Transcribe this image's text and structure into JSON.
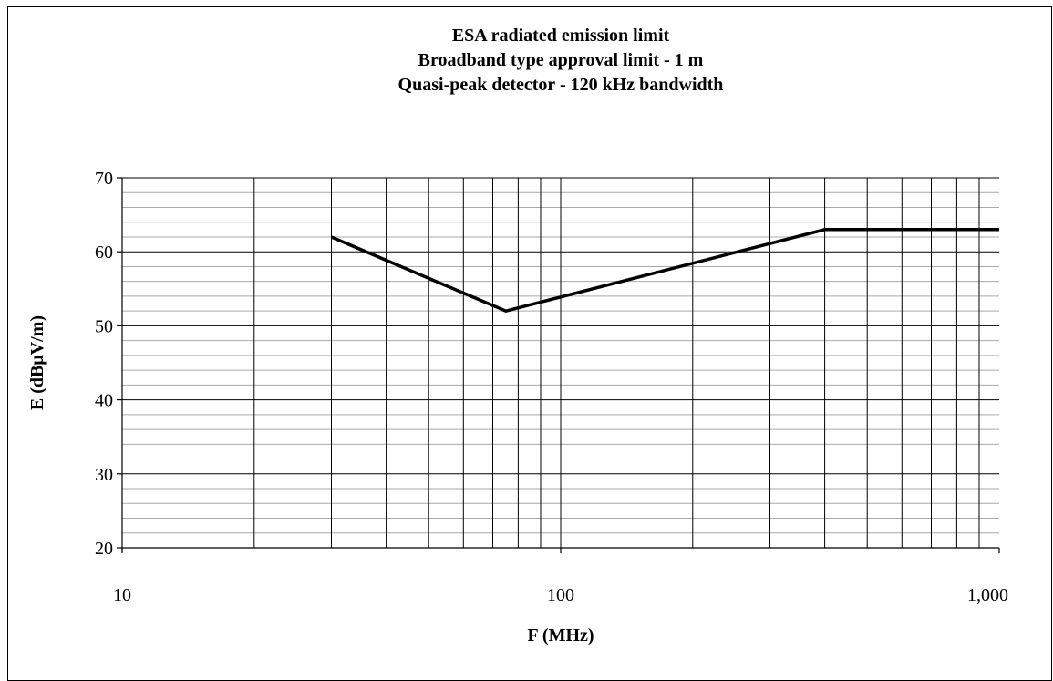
{
  "chart_data": {
    "type": "line",
    "title_lines": [
      "ESA radiated emission limit",
      "Broadband type approval limit - 1 m",
      "Quasi-peak detector - 120 kHz bandwidth"
    ],
    "xlabel": "F (MHz)",
    "ylabel": "E (dBμV/m)",
    "x_scale": "log",
    "xlim": [
      10,
      1000
    ],
    "ylim": [
      20,
      70
    ],
    "x_ticks": [
      10,
      100,
      1000
    ],
    "x_tick_labels": [
      "10",
      "100",
      "1,000"
    ],
    "y_ticks": [
      20,
      30,
      40,
      50,
      60,
      70
    ],
    "y_tick_labels": [
      "20",
      "30",
      "40",
      "50",
      "60",
      "70"
    ],
    "major_grid": true,
    "minor_grid": true,
    "legend": "none",
    "line_color": "#000000",
    "series": [
      {
        "x": [
          30,
          75,
          400,
          1000
        ],
        "y": [
          62,
          52,
          63,
          63
        ]
      }
    ]
  }
}
